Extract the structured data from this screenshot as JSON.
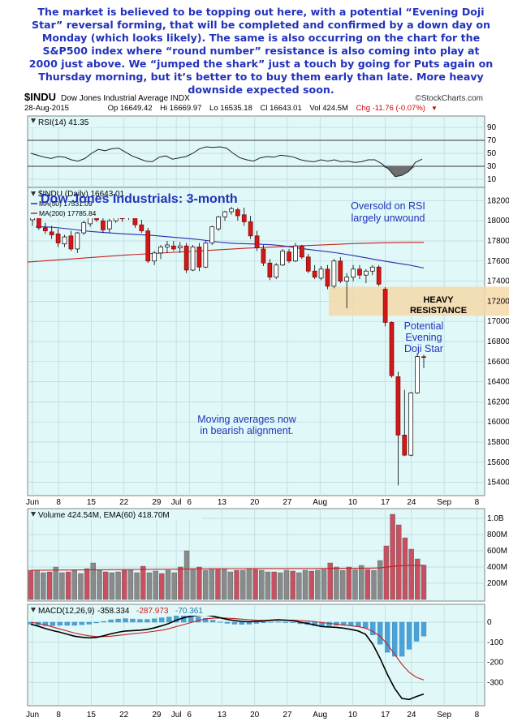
{
  "commentary": "The market is believed to be topping out here, with a potential “Evening Doji Star” reversal forming, that will be completed and confirmed by a down day on Monday (which looks likely). The same is also occurring on the chart for the S&P500 index where “round number” resistance is also coming into play at 2000 just above. We “jumped the shark” just a touch by going for Puts again on Thursday morning, but it’s better to to buy them early than late. More heavy downside expected soon.",
  "header": {
    "symbol": "$INDU",
    "name": "Dow Jones Industrial Average INDX",
    "brand": "©StockCharts.com",
    "date": "28-Aug-2015",
    "open": "Op 16649.42",
    "high": "Hi 16669.97",
    "low": "Lo 16535.18",
    "close": "Cl 16643.01",
    "volume": "Vol 424.5M",
    "change": "Chg -11.76 (-0.07%)"
  },
  "colors": {
    "panel_bg": "#e0f8f8",
    "up_candle": "#ffffff",
    "down_candle": "#d01818",
    "ma50": "#2a2ab0",
    "ma200": "#c82020",
    "annotation": "#2233bb",
    "resistance_band": "#f5d9a8",
    "volume_bar": "#c85060",
    "macd_hist": "#4aa3d8"
  },
  "chart_data": [
    {
      "type": "line",
      "panel": "rsi",
      "legend": "RSI(14) 41.35",
      "ylim": [
        0,
        100
      ],
      "y_ticks": [
        10,
        30,
        50,
        70,
        90
      ],
      "reference_lines": [
        30,
        70
      ],
      "series": [
        {
          "name": "RSI(14)",
          "values": [
            50,
            47,
            44,
            42,
            45,
            44,
            40,
            38,
            42,
            50,
            56,
            54,
            57,
            58,
            52,
            46,
            42,
            38,
            37,
            44,
            46,
            41,
            43,
            45,
            50,
            57,
            60,
            59,
            60,
            58,
            50,
            43,
            40,
            38,
            43,
            45,
            44,
            47,
            46,
            44,
            40,
            38,
            37,
            40,
            38,
            40,
            37,
            38,
            36,
            37,
            40,
            40,
            34,
            26,
            14,
            16,
            22,
            36,
            41
          ]
        }
      ]
    },
    {
      "type": "candlestick",
      "panel": "price",
      "title": "Dow Jones Industrials: 3-month",
      "legend": [
        "$INDU (Daily) 16643.01",
        "MA(50) 17531.09",
        "MA(200) 17785.84"
      ],
      "ylim": [
        15300,
        18300
      ],
      "y_ticks": [
        15400,
        15600,
        15800,
        16000,
        16200,
        16400,
        16600,
        16800,
        17000,
        17200,
        17400,
        17600,
        17800,
        18000,
        18200
      ],
      "x_tick_labels": [
        "Jun",
        "8",
        "15",
        "22",
        "29",
        "Jul",
        "6",
        "13",
        "20",
        "27",
        "Aug",
        "10",
        "17",
        "24",
        "Sep",
        "8"
      ],
      "ohlc": [
        [
          18010,
          18110,
          17950,
          18050
        ],
        [
          18040,
          18080,
          17910,
          17930
        ],
        [
          17930,
          17980,
          17870,
          17900
        ],
        [
          17890,
          17950,
          17820,
          17860
        ],
        [
          17870,
          17920,
          17740,
          17780
        ],
        [
          17770,
          17860,
          17740,
          17840
        ],
        [
          17850,
          17900,
          17700,
          17720
        ],
        [
          17720,
          17890,
          17680,
          17880
        ],
        [
          17880,
          18000,
          17860,
          17980
        ],
        [
          17970,
          18090,
          17940,
          18070
        ],
        [
          18070,
          18120,
          17990,
          18010
        ],
        [
          18000,
          18060,
          17880,
          17910
        ],
        [
          17920,
          18020,
          17880,
          18000
        ],
        [
          18000,
          18150,
          17980,
          18110
        ],
        [
          18110,
          18140,
          17990,
          18020
        ],
        [
          18040,
          18150,
          18010,
          18120
        ],
        [
          18120,
          18130,
          17930,
          17960
        ],
        [
          17960,
          18010,
          17880,
          17900
        ],
        [
          17900,
          17930,
          17580,
          17600
        ],
        [
          17600,
          17700,
          17560,
          17680
        ],
        [
          17680,
          17760,
          17620,
          17740
        ],
        [
          17740,
          17800,
          17680,
          17760
        ],
        [
          17750,
          17800,
          17700,
          17720
        ],
        [
          17730,
          17790,
          17680,
          17750
        ],
        [
          17750,
          17780,
          17480,
          17510
        ],
        [
          17510,
          17760,
          17500,
          17740
        ],
        [
          17740,
          17780,
          17500,
          17540
        ],
        [
          17540,
          17800,
          17530,
          17780
        ],
        [
          17780,
          17950,
          17760,
          17940
        ],
        [
          17920,
          18050,
          17900,
          18040
        ],
        [
          18040,
          18100,
          18000,
          18090
        ],
        [
          18090,
          18140,
          18060,
          18120
        ],
        [
          18110,
          18130,
          18000,
          18050
        ],
        [
          18060,
          18130,
          17950,
          17990
        ],
        [
          17990,
          18050,
          17820,
          17850
        ],
        [
          17850,
          17900,
          17700,
          17730
        ],
        [
          17720,
          17760,
          17550,
          17580
        ],
        [
          17580,
          17620,
          17410,
          17440
        ],
        [
          17440,
          17580,
          17420,
          17560
        ],
        [
          17560,
          17720,
          17550,
          17700
        ],
        [
          17690,
          17720,
          17580,
          17600
        ],
        [
          17600,
          17780,
          17590,
          17750
        ],
        [
          17750,
          17760,
          17620,
          17640
        ],
        [
          17640,
          17670,
          17480,
          17500
        ],
        [
          17500,
          17560,
          17420,
          17440
        ],
        [
          17430,
          17550,
          17410,
          17520
        ],
        [
          17520,
          17560,
          17320,
          17350
        ],
        [
          17350,
          17620,
          17330,
          17600
        ],
        [
          17600,
          17640,
          17380,
          17400
        ],
        [
          17400,
          17480,
          17130,
          17440
        ],
        [
          17440,
          17560,
          17400,
          17520
        ],
        [
          17520,
          17560,
          17420,
          17460
        ],
        [
          17460,
          17520,
          17380,
          17500
        ],
        [
          17500,
          17560,
          17460,
          17540
        ],
        [
          17540,
          17560,
          17350,
          17370
        ],
        [
          17320,
          17340,
          16950,
          16990
        ],
        [
          16990,
          17000,
          16440,
          16460
        ],
        [
          16450,
          16500,
          15370,
          15870
        ],
        [
          15870,
          16320,
          15660,
          15670
        ],
        [
          15670,
          16300,
          15660,
          16290
        ],
        [
          16290,
          16680,
          16280,
          16650
        ],
        [
          16649,
          16670,
          16535,
          16643
        ]
      ],
      "series": [
        {
          "name": "MA(50)",
          "values": [
            17940,
            17940,
            17938,
            17932,
            17925,
            17918,
            17910,
            17900,
            17893,
            17888,
            17883,
            17878,
            17873,
            17869,
            17866,
            17862,
            17858,
            17854,
            17848,
            17842,
            17836,
            17830,
            17824,
            17818,
            17810,
            17801,
            17792,
            17784,
            17778,
            17774,
            17772,
            17770,
            17768,
            17765,
            17762,
            17756,
            17748,
            17738,
            17728,
            17719,
            17710,
            17702,
            17694,
            17685,
            17675,
            17664,
            17652,
            17640,
            17628,
            17615,
            17603,
            17592,
            17581,
            17570,
            17559,
            17545,
            17531
          ]
        },
        {
          "name": "MA(200)",
          "values": [
            17590,
            17595,
            17600,
            17605,
            17610,
            17615,
            17620,
            17625,
            17630,
            17635,
            17640,
            17645,
            17650,
            17655,
            17660,
            17664,
            17668,
            17672,
            17676,
            17680,
            17684,
            17688,
            17692,
            17696,
            17700,
            17704,
            17708,
            17712,
            17716,
            17720,
            17724,
            17728,
            17731,
            17734,
            17737,
            17740,
            17743,
            17746,
            17749,
            17752,
            17755,
            17758,
            17761,
            17764,
            17767,
            17770,
            17773,
            17775,
            17777,
            17779,
            17781,
            17782,
            17783,
            17784,
            17785,
            17785,
            17785
          ]
        }
      ],
      "annotations": [
        {
          "text": "Oversold on RSI",
          "text2": "largely unwound"
        },
        {
          "text": "HEAVY",
          "text2": "RESISTANCE",
          "band": [
            17120,
            17280
          ]
        },
        {
          "text": "Potential",
          "text2": "Evening",
          "text3": "Doji Star"
        },
        {
          "text": "Moving averages now",
          "text2": "in bearish alignment."
        }
      ]
    },
    {
      "type": "bar",
      "panel": "volume",
      "legend": "Volume 424.54M, EMA(60) 418.70M",
      "y_tick_labels": [
        "200M",
        "400M",
        "600M",
        "800M",
        "1.0B"
      ],
      "y_tick_values": [
        200,
        400,
        600,
        800,
        1000
      ],
      "values": [
        360,
        360,
        330,
        340,
        400,
        330,
        340,
        360,
        320,
        380,
        450,
        360,
        340,
        330,
        340,
        360,
        360,
        330,
        410,
        330,
        350,
        320,
        360,
        330,
        400,
        600,
        380,
        400,
        360,
        370,
        370,
        370,
        340,
        360,
        360,
        380,
        370,
        360,
        340,
        340,
        330,
        360,
        350,
        330,
        360,
        350,
        360,
        370,
        450,
        400,
        360,
        400,
        370,
        420,
        370,
        360,
        480,
        660,
        1050,
        920,
        760,
        620,
        500,
        424
      ],
      "series": [
        {
          "name": "EMA(60)",
          "values": [
            360,
            361,
            361,
            362,
            362,
            363,
            363,
            364,
            364,
            365,
            366,
            366,
            367,
            368,
            368,
            369,
            369,
            370,
            371,
            371,
            372,
            372,
            373,
            373,
            374,
            376,
            377,
            378,
            378,
            379,
            379,
            379,
            380,
            380,
            380,
            381,
            381,
            381,
            381,
            381,
            381,
            381,
            381,
            381,
            381,
            381,
            381,
            382,
            383,
            384,
            384,
            385,
            385,
            386,
            386,
            387,
            389,
            398,
            408,
            414,
            418,
            419,
            419,
            419
          ]
        }
      ]
    },
    {
      "type": "line",
      "panel": "macd",
      "legend": [
        "MACD(12,26,9)",
        "-358.334",
        "-287.973",
        "-70.361"
      ],
      "y_ticks": [
        -300,
        -200,
        -100,
        0
      ],
      "series": [
        {
          "name": "MACD(12,26,9)",
          "values": [
            -10,
            -20,
            -32,
            -42,
            -50,
            -60,
            -70,
            -75,
            -78,
            -76,
            -68,
            -58,
            -50,
            -44,
            -42,
            -40,
            -36,
            -28,
            -18,
            -6,
            10,
            22,
            30,
            34,
            36,
            30,
            22,
            14,
            8,
            4,
            2,
            4,
            6,
            10,
            12,
            10,
            8,
            0,
            -6,
            -14,
            -22,
            -24,
            -26,
            -30,
            -36,
            -44,
            -60,
            -110,
            -180,
            -260,
            -330,
            -380,
            -385,
            -370,
            -358
          ]
        },
        {
          "name": "Signal",
          "values": [
            0,
            -6,
            -14,
            -24,
            -34,
            -44,
            -54,
            -62,
            -68,
            -72,
            -72,
            -70,
            -66,
            -62,
            -58,
            -54,
            -50,
            -45,
            -40,
            -32,
            -22,
            -12,
            -2,
            8,
            16,
            20,
            21,
            20,
            18,
            15,
            12,
            10,
            9,
            9,
            10,
            10,
            10,
            8,
            6,
            3,
            -2,
            -6,
            -10,
            -14,
            -18,
            -22,
            -30,
            -46,
            -70,
            -110,
            -160,
            -210,
            -250,
            -275,
            -288
          ]
        },
        {
          "name": "Histogram",
          "values": [
            -10,
            -14,
            -18,
            -18,
            -16,
            -16,
            -16,
            -13,
            -10,
            -4,
            4,
            12,
            16,
            18,
            16,
            14,
            14,
            17,
            22,
            26,
            32,
            34,
            32,
            26,
            20,
            10,
            1,
            -6,
            -10,
            -11,
            -10,
            -6,
            -3,
            1,
            2,
            0,
            -2,
            -8,
            -12,
            -17,
            -20,
            -18,
            -16,
            -16,
            -18,
            -22,
            -30,
            -64,
            -110,
            -150,
            -170,
            -170,
            -135,
            -95,
            -70
          ]
        }
      ]
    }
  ]
}
